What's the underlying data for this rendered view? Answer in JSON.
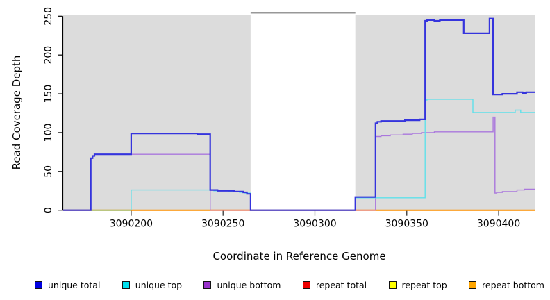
{
  "figure": {
    "background": "#ffffff",
    "y_axis_title": "Read Coverage Depth",
    "x_axis_title": "Coordinate in Reference Genome"
  },
  "legend": {
    "position": "bottom",
    "items": [
      {
        "label": "unique total",
        "color": "#0000e0"
      },
      {
        "label": "unique top",
        "color": "#00e0ee"
      },
      {
        "label": "unique bottom",
        "color": "#9932cc"
      },
      {
        "label": "repeat total",
        "color": "#ee0000"
      },
      {
        "label": "repeat top",
        "color": "#ffff00"
      },
      {
        "label": "repeat bottom",
        "color": "#ffa500"
      }
    ]
  },
  "chart_data": {
    "type": "line",
    "step": true,
    "title": "",
    "xlabel": "Coordinate in Reference Genome",
    "ylabel": "Read Coverage Depth",
    "xlim": [
      3090163,
      3090420
    ],
    "ylim": [
      0,
      250
    ],
    "x_ticks": [
      3090200,
      3090250,
      3090300,
      3090350,
      3090400
    ],
    "y_ticks": [
      0,
      50,
      100,
      150,
      200,
      250
    ],
    "grid": false,
    "legend_position": "bottom",
    "plot_background": "#ffffff",
    "shaded_regions": [
      {
        "from": 3090163,
        "to": 3090265,
        "color": "#dcdcdc"
      },
      {
        "from": 3090322,
        "to": 3090420,
        "color": "#dcdcdc"
      }
    ],
    "gap_connector": {
      "from": 3090265,
      "to": 3090322,
      "color": "#989898"
    },
    "series": [
      {
        "name": "repeat total",
        "color": "#dd2222",
        "width": 1.4,
        "segments": [
          [
            [
              3090163,
              0
            ],
            [
              3090420,
              0
            ]
          ]
        ]
      },
      {
        "name": "repeat top",
        "color": "#ffee00",
        "width": 1.4,
        "segments": [
          [
            [
              3090163,
              0
            ],
            [
              3090420,
              0
            ]
          ]
        ]
      },
      {
        "name": "repeat bottom",
        "color": "#ff9100",
        "width": 2,
        "segments": [
          [
            [
              3090163,
              0
            ],
            [
              3090420,
              0
            ]
          ]
        ]
      },
      {
        "name": "unique bottom",
        "color": "#aa77dd",
        "width": 1.4,
        "segments": [
          [
            [
              3090178,
              0
            ],
            [
              3090178,
              67
            ],
            [
              3090179,
              67
            ],
            [
              3090179,
              70
            ],
            [
              3090180,
              70
            ],
            [
              3090180,
              72
            ],
            [
              3090243,
              72
            ],
            [
              3090243,
              0
            ]
          ],
          [
            [
              3090333,
              0
            ],
            [
              3090333,
              95
            ],
            [
              3090336,
              95
            ],
            [
              3090336,
              96
            ],
            [
              3090341,
              96
            ],
            [
              3090341,
              97
            ],
            [
              3090348,
              97
            ],
            [
              3090348,
              98
            ],
            [
              3090353,
              98
            ],
            [
              3090353,
              99
            ],
            [
              3090358,
              99
            ],
            [
              3090358,
              100
            ],
            [
              3090365,
              100
            ],
            [
              3090365,
              101
            ],
            [
              3090397,
              101
            ],
            [
              3090397,
              120
            ],
            [
              3090398,
              120
            ],
            [
              3090398,
              22
            ],
            [
              3090399,
              22
            ],
            [
              3090399,
              23
            ],
            [
              3090402,
              23
            ],
            [
              3090402,
              24
            ],
            [
              3090410,
              24
            ],
            [
              3090410,
              26
            ],
            [
              3090414,
              26
            ],
            [
              3090414,
              27
            ],
            [
              3090420,
              27
            ]
          ]
        ]
      },
      {
        "name": "unique top",
        "color": "#5fe0ea",
        "width": 1.4,
        "segments": [
          [
            [
              3090200,
              0
            ],
            [
              3090200,
              26
            ],
            [
              3090245,
              26
            ],
            [
              3090245,
              25
            ],
            [
              3090253,
              25
            ],
            [
              3090253,
              24
            ],
            [
              3090259,
              24
            ],
            [
              3090259,
              23
            ],
            [
              3090262,
              23
            ],
            [
              3090262,
              22
            ],
            [
              3090265,
              22
            ],
            [
              3090265,
              0
            ]
          ],
          [
            [
              3090322,
              0
            ],
            [
              3090322,
              16
            ],
            [
              3090360,
              16
            ],
            [
              3090360,
              142
            ],
            [
              3090361,
              142
            ],
            [
              3090361,
              143
            ],
            [
              3090386,
              143
            ],
            [
              3090386,
              126
            ],
            [
              3090404,
              126
            ],
            [
              3090409,
              126
            ],
            [
              3090409,
              129
            ],
            [
              3090412,
              129
            ],
            [
              3090412,
              126
            ],
            [
              3090420,
              126
            ]
          ]
        ]
      },
      {
        "name": "unique total",
        "color": "#3534dd",
        "width": 2.2,
        "segments": [
          [
            [
              3090163,
              0
            ],
            [
              3090178,
              0
            ],
            [
              3090178,
              67
            ],
            [
              3090179,
              67
            ],
            [
              3090179,
              70
            ],
            [
              3090180,
              70
            ],
            [
              3090180,
              72
            ],
            [
              3090200,
              72
            ],
            [
              3090200,
              99
            ],
            [
              3090236,
              99
            ],
            [
              3090236,
              98
            ],
            [
              3090243,
              98
            ],
            [
              3090243,
              26
            ],
            [
              3090247,
              26
            ],
            [
              3090247,
              25
            ],
            [
              3090256,
              25
            ],
            [
              3090256,
              24
            ],
            [
              3090261,
              24
            ],
            [
              3090261,
              23
            ],
            [
              3090263,
              23
            ],
            [
              3090263,
              21
            ],
            [
              3090265,
              21
            ],
            [
              3090265,
              0
            ],
            [
              3090322,
              0
            ],
            [
              3090322,
              17
            ],
            [
              3090333,
              17
            ],
            [
              3090333,
              112
            ],
            [
              3090334,
              112
            ],
            [
              3090334,
              114
            ],
            [
              3090336,
              114
            ],
            [
              3090336,
              115
            ],
            [
              3090349,
              115
            ],
            [
              3090349,
              116
            ],
            [
              3090357,
              116
            ],
            [
              3090357,
              117
            ],
            [
              3090360,
              117
            ],
            [
              3090360,
              244
            ],
            [
              3090361,
              244
            ],
            [
              3090361,
              245
            ],
            [
              3090365,
              245
            ],
            [
              3090365,
              244
            ],
            [
              3090368,
              244
            ],
            [
              3090368,
              245
            ],
            [
              3090381,
              245
            ],
            [
              3090381,
              228
            ],
            [
              3090395,
              228
            ],
            [
              3090395,
              247
            ],
            [
              3090397,
              247
            ],
            [
              3090397,
              149
            ],
            [
              3090402,
              149
            ],
            [
              3090402,
              150
            ],
            [
              3090410,
              150
            ],
            [
              3090410,
              152
            ],
            [
              3090413,
              152
            ],
            [
              3090413,
              151
            ],
            [
              3090415,
              151
            ],
            [
              3090415,
              152
            ],
            [
              3090420,
              152
            ]
          ]
        ]
      }
    ],
    "zero_line_overlays": [
      {
        "from": 3090178,
        "to": 3090200,
        "color": "#7ccc88"
      },
      {
        "from": 3090243,
        "to": 3090265,
        "color": "#e57c9a"
      },
      {
        "from": 3090322,
        "to": 3090333,
        "color": "#e57c9a"
      }
    ]
  }
}
